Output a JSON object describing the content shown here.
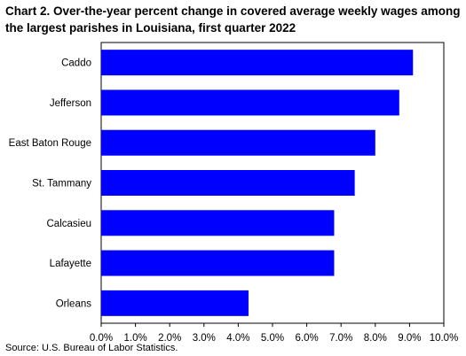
{
  "chart_data": {
    "type": "bar",
    "orientation": "horizontal",
    "title": "Chart 2. Over-the-year percent change in covered average weekly wages among the largest parishes in Louisiana, first quarter 2022",
    "categories": [
      "Caddo",
      "Jefferson",
      "East Baton Rouge",
      "St. Tammany",
      "Calcasieu",
      "Lafayette",
      "Orleans"
    ],
    "values": [
      9.1,
      8.7,
      8.0,
      7.4,
      6.8,
      6.8,
      4.3
    ],
    "x_ticks": [
      "0.0%",
      "1.0%",
      "2.0%",
      "3.0%",
      "4.0%",
      "5.0%",
      "6.0%",
      "7.0%",
      "8.0%",
      "9.0%",
      "10.0%"
    ],
    "xlim": [
      0,
      10
    ],
    "grid": false,
    "legend": "none",
    "bar_color": "#0000FF",
    "source": "Source: U.S. Bureau of Labor Statistics."
  }
}
